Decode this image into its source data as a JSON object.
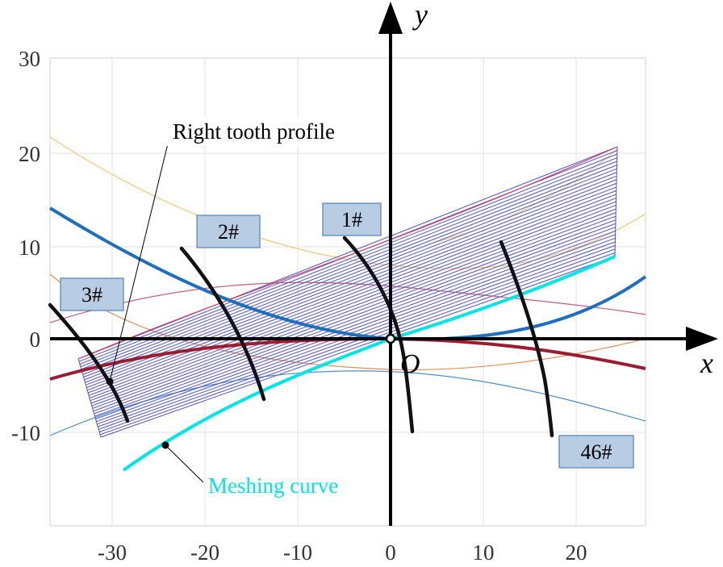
{
  "axes": {
    "x_name": "x",
    "y_name": "y",
    "origin_label": "O",
    "x_ticks": [
      "-30",
      "-20",
      "-10",
      "0",
      "10",
      "20"
    ],
    "y_ticks": [
      "30",
      "20",
      "10",
      "0",
      "-10"
    ]
  },
  "tooth_labels": [
    "1#",
    "2#",
    "3#",
    "46#"
  ],
  "annotations": {
    "right_tooth_profile": "Right tooth profile",
    "meshing_curve": "Meshing curve"
  },
  "colors": {
    "meshing_curve": "#00e5e5",
    "tooth_profile": "#111111",
    "hatch": "#5050d0",
    "blue_curve": "#1f6fc1",
    "dark_red_curve": "#9b1b30",
    "tag_fill": "#b8cce4"
  }
}
